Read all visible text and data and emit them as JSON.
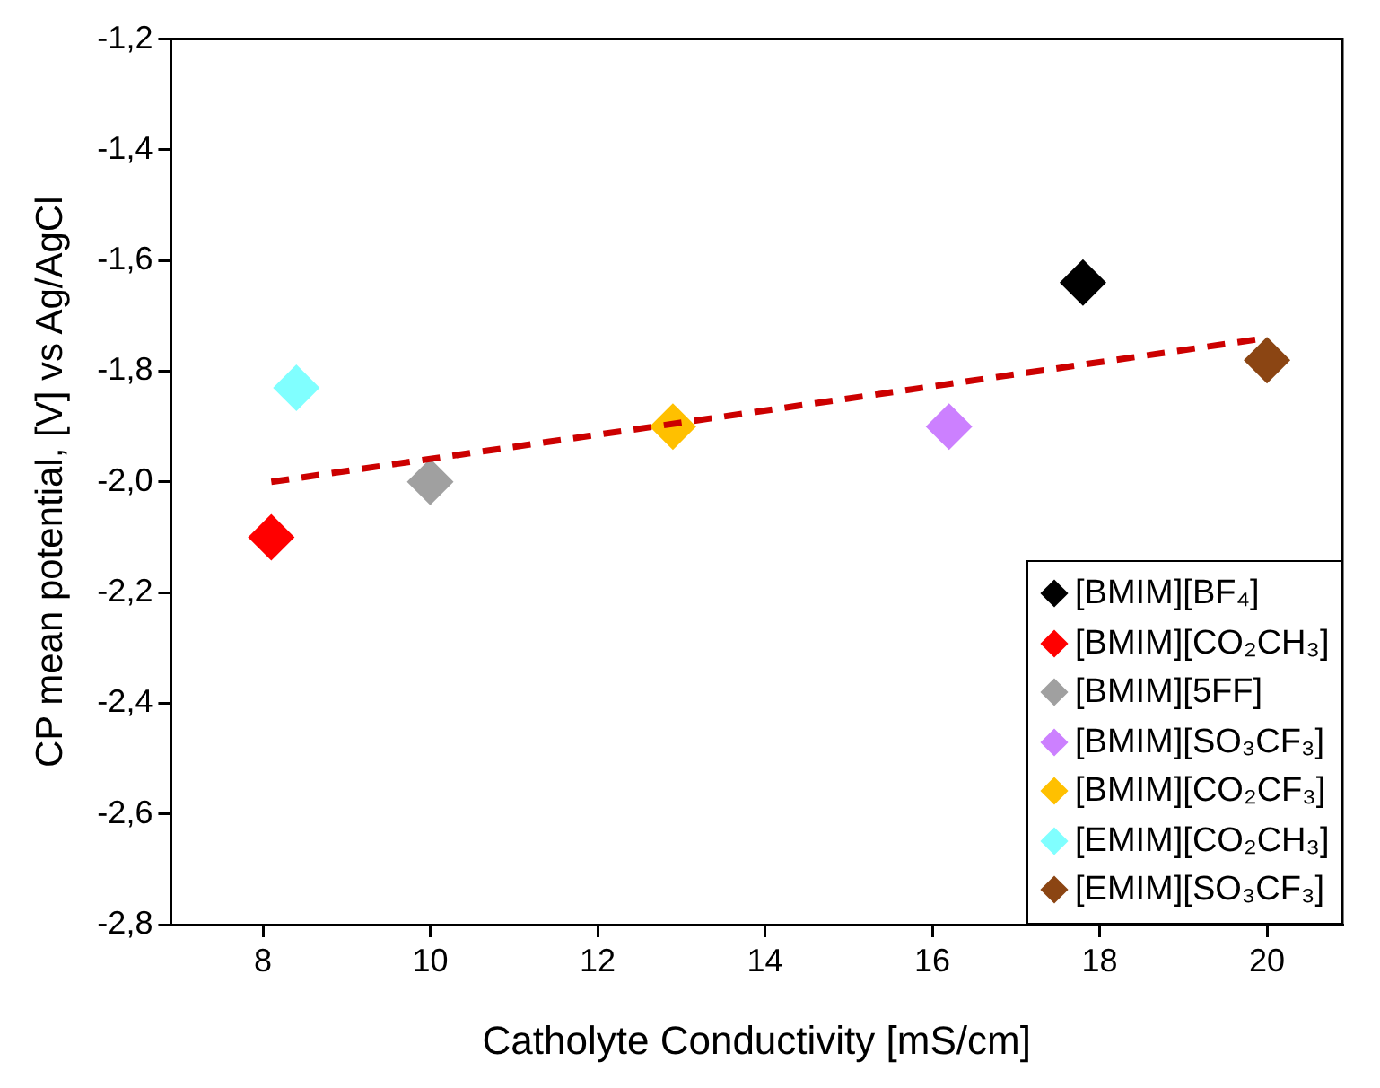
{
  "chart_data": {
    "type": "scatter",
    "xlabel": "Catholyte Conductivity [mS/cm]",
    "ylabel": "CP mean potential, [V] vs Ag/AgCl",
    "xlim": [
      6.9,
      20.9
    ],
    "xticks": [
      8,
      10,
      12,
      14,
      16,
      18,
      20
    ],
    "ylim": [
      -2.8,
      -1.2
    ],
    "yticks": [
      {
        "value": -2.8,
        "label": "-2,8"
      },
      {
        "value": -2.6,
        "label": "-2,6"
      },
      {
        "value": -2.4,
        "label": "-2,4"
      },
      {
        "value": -2.2,
        "label": "-2,2"
      },
      {
        "value": -2.0,
        "label": "-2,0"
      },
      {
        "value": -1.8,
        "label": "-1,8"
      },
      {
        "value": -1.6,
        "label": "-1,6"
      },
      {
        "value": -1.4,
        "label": "-1,4"
      },
      {
        "value": -1.2,
        "label": "-1,2"
      }
    ],
    "grid": false,
    "legend": "bottom right",
    "marker": "diamond",
    "series": [
      {
        "name": "[BMIM][BF₄]",
        "color": "#000000",
        "x": [
          17.8
        ],
        "values": [
          -1.64
        ]
      },
      {
        "name": "[BMIM][CO₂CH₃]",
        "color": "#ff0000",
        "x": [
          8.1
        ],
        "values": [
          -2.1
        ]
      },
      {
        "name": "[BMIM][5FF]",
        "color": "#a0a0a0",
        "x": [
          10.0
        ],
        "values": [
          -2.0
        ]
      },
      {
        "name": "[BMIM][SO₃CF₃]",
        "color": "#cc80ff",
        "x": [
          16.2
        ],
        "values": [
          -1.9
        ]
      },
      {
        "name": "[BMIM][CO₂CF₃]",
        "color": "#ffc000",
        "x": [
          12.9
        ],
        "values": [
          -1.9
        ]
      },
      {
        "name": "[EMIM][CO₂CH₃]",
        "color": "#80ffff",
        "x": [
          8.4
        ],
        "values": [
          -1.83
        ]
      },
      {
        "name": "[EMIM][SO₃CF₃]",
        "color": "#8b4513",
        "x": [
          20.0
        ],
        "values": [
          -1.78
        ]
      },
      {
        "type": "line",
        "color": "#cc0000",
        "line_style": "dashed",
        "marker": "none",
        "x": [
          8.1,
          20.0
        ],
        "values": [
          -2.0,
          -1.74
        ]
      }
    ]
  }
}
